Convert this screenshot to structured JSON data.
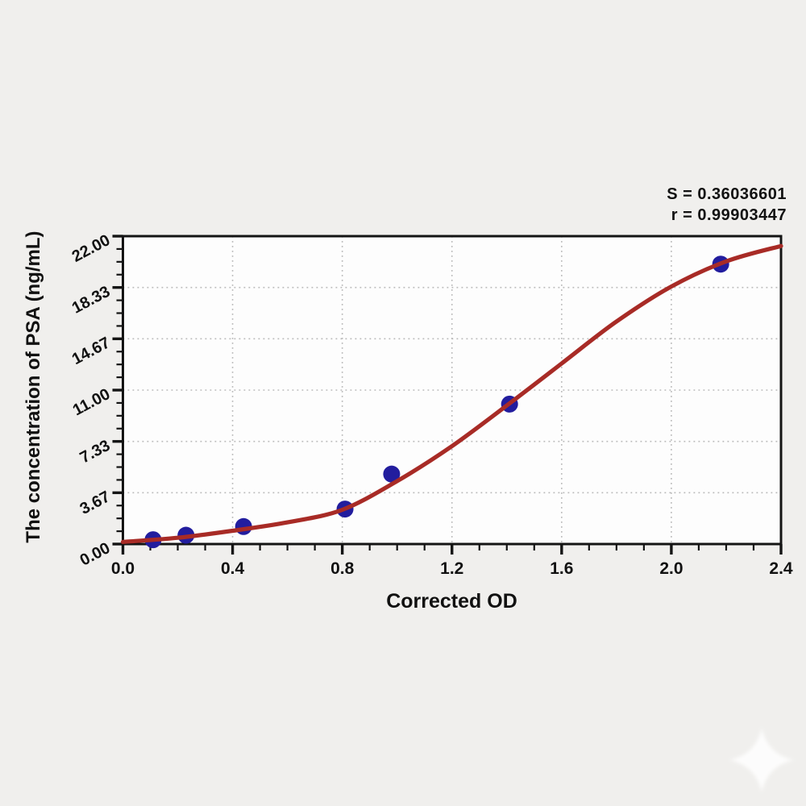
{
  "colors": {
    "background": "#f0efed",
    "plot_background": "#fdfdfd",
    "frame": "#141414",
    "grid": "#b9b9b9",
    "curve": "#a82b26",
    "point": "#221d9e",
    "text": "#111111",
    "watermark": "#ffffff"
  },
  "annotation": {
    "line1": "S = 0.36036601",
    "line2": "r = 0.99903447"
  },
  "chart_data": {
    "type": "scatter",
    "title": "",
    "xlabel": "Corrected OD",
    "ylabel": "The concentration of PSA (ng/mL)",
    "xlim": [
      0.0,
      2.4
    ],
    "ylim": [
      0.0,
      22.0
    ],
    "grid": true,
    "legend_position": "none",
    "x_major_ticks": [
      0.0,
      0.4,
      0.8,
      1.2,
      1.6,
      2.0,
      2.4
    ],
    "x_tick_labels": [
      "0.0",
      "0.4",
      "0.8",
      "1.2",
      "1.6",
      "2.0",
      "2.4"
    ],
    "x_minor_divisions": 4,
    "y_major_ticks": [
      0.0,
      3.67,
      7.33,
      11.0,
      14.67,
      18.33,
      22.0
    ],
    "y_tick_labels": [
      "0.00",
      "3.67",
      "7.33",
      "11.00",
      "14.67",
      "18.33",
      "22.00"
    ],
    "y_minor_divisions": 4,
    "series": [
      {
        "name": "standard-points",
        "type": "scatter",
        "color": "#221d9e",
        "points": [
          [
            0.11,
            0.31
          ],
          [
            0.23,
            0.63
          ],
          [
            0.44,
            1.25
          ],
          [
            0.81,
            2.5
          ],
          [
            0.98,
            5.0
          ],
          [
            1.41,
            10.0
          ],
          [
            2.18,
            20.0
          ]
        ]
      },
      {
        "name": "fit-curve",
        "type": "line",
        "color": "#a82b26",
        "points": [
          [
            0.0,
            0.15
          ],
          [
            0.2,
            0.45
          ],
          [
            0.4,
            0.95
          ],
          [
            0.6,
            1.55
          ],
          [
            0.8,
            2.45
          ],
          [
            1.0,
            4.5
          ],
          [
            1.2,
            7.0
          ],
          [
            1.4,
            9.9
          ],
          [
            1.6,
            12.9
          ],
          [
            1.8,
            15.9
          ],
          [
            2.0,
            18.4
          ],
          [
            2.2,
            20.2
          ],
          [
            2.4,
            21.3
          ]
        ]
      }
    ],
    "annotations": [
      "S = 0.36036601",
      "r = 0.99903447"
    ]
  }
}
